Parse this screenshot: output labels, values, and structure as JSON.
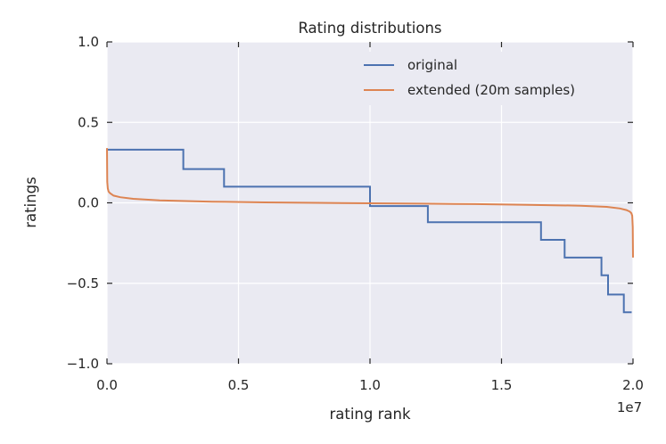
{
  "chart_data": {
    "type": "line",
    "title": "Rating distributions",
    "xlabel": "rating rank",
    "ylabel": "ratings",
    "x_offset_label": "1e7",
    "xlim": [
      0,
      20000000
    ],
    "ylim": [
      -1.0,
      1.0
    ],
    "x_ticks": [
      0,
      5000000,
      10000000,
      15000000,
      20000000
    ],
    "x_tick_labels": [
      "0.0",
      "0.5",
      "1.0",
      "1.5",
      "2.0"
    ],
    "y_ticks": [
      1.0,
      0.5,
      0.0,
      -0.5,
      -1.0
    ],
    "y_tick_labels": [
      "1.0",
      "0.5",
      "0.0",
      "−0.5",
      "−1.0"
    ],
    "grid": true,
    "legend_position": "upper-right",
    "series": [
      {
        "name": "original",
        "color": "#4c72b0",
        "x": [
          0,
          2900000,
          2900000,
          4450000,
          4450000,
          10000000,
          10000000,
          12200000,
          12200000,
          16500000,
          16500000,
          17400000,
          17400000,
          18800000,
          18800000,
          19050000,
          19050000,
          19650000,
          19650000,
          19950000
        ],
        "y": [
          0.33,
          0.33,
          0.21,
          0.21,
          0.1,
          0.1,
          -0.02,
          -0.02,
          -0.12,
          -0.12,
          -0.23,
          -0.23,
          -0.34,
          -0.34,
          -0.45,
          -0.45,
          -0.57,
          -0.57,
          -0.68,
          -0.68
        ]
      },
      {
        "name": "extended (20m samples)",
        "color": "#dd8452",
        "x": [
          0,
          10000,
          30000,
          60000,
          120000,
          250000,
          500000,
          1000000,
          2000000,
          4000000,
          6000000,
          8000000,
          10000000,
          12000000,
          14000000,
          16000000,
          18000000,
          19000000,
          19500000,
          19750000,
          19880000,
          19940000,
          19970000,
          19990000,
          20000000
        ],
        "y": [
          0.34,
          0.13,
          0.09,
          0.07,
          0.06,
          0.045,
          0.035,
          0.025,
          0.015,
          0.007,
          0.003,
          0.0,
          -0.003,
          -0.005,
          -0.008,
          -0.012,
          -0.018,
          -0.025,
          -0.035,
          -0.045,
          -0.055,
          -0.065,
          -0.08,
          -0.15,
          -0.34
        ]
      }
    ]
  }
}
